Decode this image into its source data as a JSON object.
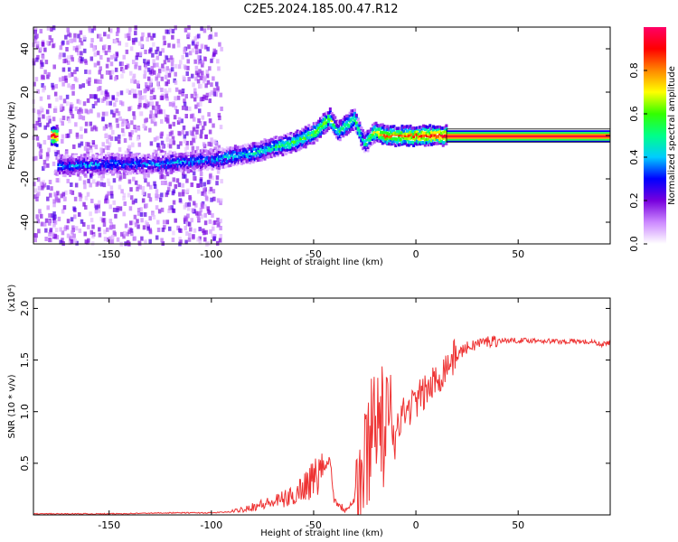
{
  "figure": {
    "title": "C2E5.2024.185.00.47.R12"
  },
  "chart_data": [
    {
      "type": "heatmap",
      "name": "spectrogram",
      "xlabel": "Height of straight line (km)",
      "ylabel": "Frequency (Hz)",
      "xlim": [
        -187,
        95
      ],
      "ylim": [
        -50,
        50
      ],
      "xticks": [
        -150,
        -100,
        -50,
        0,
        50
      ],
      "yticks": [
        -40,
        -20,
        0,
        20,
        40
      ],
      "colorbar": {
        "label": "Normalized spectral amplitude",
        "range": [
          0,
          1
        ],
        "ticks": [
          0.0,
          0.2,
          0.4,
          0.6,
          0.8
        ],
        "colormap": [
          "#ffffff",
          "#cc88ff",
          "#7700dd",
          "#0000ff",
          "#00ccff",
          "#00ff88",
          "#33ff00",
          "#ffff00",
          "#ff8800",
          "#ff0000",
          "#ff0066"
        ]
      },
      "ridge": {
        "description_points_x": [
          -175,
          -150,
          -125,
          -100,
          -80,
          -60,
          -50,
          -42,
          -38,
          -30,
          -25,
          -20,
          -15,
          0,
          15,
          95
        ],
        "description_points_y": [
          -14,
          -13,
          -13,
          -11,
          -8,
          -3,
          1,
          8,
          2,
          8,
          -4,
          2,
          0,
          0,
          0,
          0
        ],
        "amplitude": [
          0.35,
          0.35,
          0.35,
          0.38,
          0.45,
          0.55,
          0.6,
          0.65,
          0.5,
          0.6,
          0.45,
          0.7,
          0.8,
          0.85,
          0.9,
          0.95
        ]
      }
    },
    {
      "type": "line",
      "name": "snr",
      "xlabel": "Height of straight line (km)",
      "ylabel": "SNR (10 * v/v)",
      "scale_label": "(x10⁴)",
      "xlim": [
        -187,
        95
      ],
      "ylim": [
        0,
        2.1
      ],
      "xticks": [
        -150,
        -100,
        -50,
        0,
        50
      ],
      "yticks": [
        0.5,
        1.0,
        1.5,
        2.0
      ],
      "line_color": "#ee3333",
      "series": [
        {
          "x": [
            -187,
            -150,
            -120,
            -100,
            -90,
            -80,
            -70,
            -60,
            -55,
            -50,
            -45,
            -42,
            -40,
            -35,
            -30,
            -25,
            -22,
            -20,
            -18,
            -15,
            -10,
            -5,
            0,
            5,
            10,
            15,
            20,
            25,
            30,
            35,
            40,
            50,
            60,
            70,
            80,
            88,
            90,
            95
          ],
          "y": [
            0.01,
            0.01,
            0.02,
            0.02,
            0.03,
            0.08,
            0.12,
            0.18,
            0.28,
            0.35,
            0.45,
            0.55,
            0.15,
            0.05,
            0.15,
            0.45,
            0.85,
            1.1,
            0.9,
            0.8,
            0.9,
            1.0,
            1.1,
            1.2,
            1.3,
            1.45,
            1.55,
            1.62,
            1.66,
            1.68,
            1.69,
            1.69,
            1.69,
            1.68,
            1.68,
            1.67,
            1.65,
            1.67
          ]
        }
      ]
    }
  ]
}
